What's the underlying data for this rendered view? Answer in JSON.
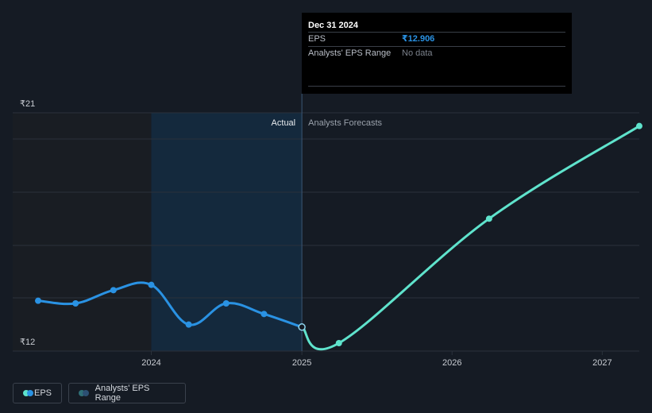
{
  "chart_data": {
    "type": "line",
    "title": "",
    "xlabel": "",
    "ylabel": "",
    "currency_symbol": "₹",
    "y_tick_labels": [
      "₹21",
      "₹12"
    ],
    "ylim": [
      12,
      21
    ],
    "x_tick_labels": [
      "2024",
      "2025",
      "2026",
      "2027"
    ],
    "xlim": [
      "2023-03-31",
      "2027-03-31"
    ],
    "region_labels": {
      "actual": "Actual",
      "forecast": "Analysts Forecasts"
    },
    "series": [
      {
        "name": "EPS",
        "kind": "actual",
        "color": "#2a92e3",
        "points": [
          {
            "x": "2023-03-31",
            "y": 13.9
          },
          {
            "x": "2023-06-30",
            "y": 13.8
          },
          {
            "x": "2023-09-30",
            "y": 14.3
          },
          {
            "x": "2023-12-31",
            "y": 14.5
          },
          {
            "x": "2024-03-31",
            "y": 13.0
          },
          {
            "x": "2024-06-30",
            "y": 13.8
          },
          {
            "x": "2024-09-30",
            "y": 13.4
          },
          {
            "x": "2024-12-31",
            "y": 12.906
          }
        ]
      },
      {
        "name": "EPS",
        "kind": "forecast",
        "color": "#5fe3cc",
        "points": [
          {
            "x": "2024-12-31",
            "y": 12.906
          },
          {
            "x": "2025-03-31",
            "y": 12.3
          },
          {
            "x": "2026-03-31",
            "y": 17.0
          },
          {
            "x": "2027-03-31",
            "y": 20.5
          }
        ]
      }
    ]
  },
  "tooltip": {
    "date": "Dec 31 2024",
    "eps_label": "EPS",
    "eps_value": "₹12.906",
    "range_label": "Analysts' EPS Range",
    "range_value": "No data"
  },
  "legend": {
    "eps_label": "EPS",
    "range_label": "Analysts' EPS Range",
    "eps_colors": [
      "#5fe3cc",
      "#2a92e3"
    ],
    "range_colors": [
      "#2f6f77",
      "#2c4f73"
    ]
  },
  "colors": {
    "background": "#151b24",
    "past_shade": "#191d23",
    "highlight_shade": "#14293d",
    "grid": "#2a313b",
    "axis_text": "#c8ccd2",
    "divider": "#3a5775"
  }
}
